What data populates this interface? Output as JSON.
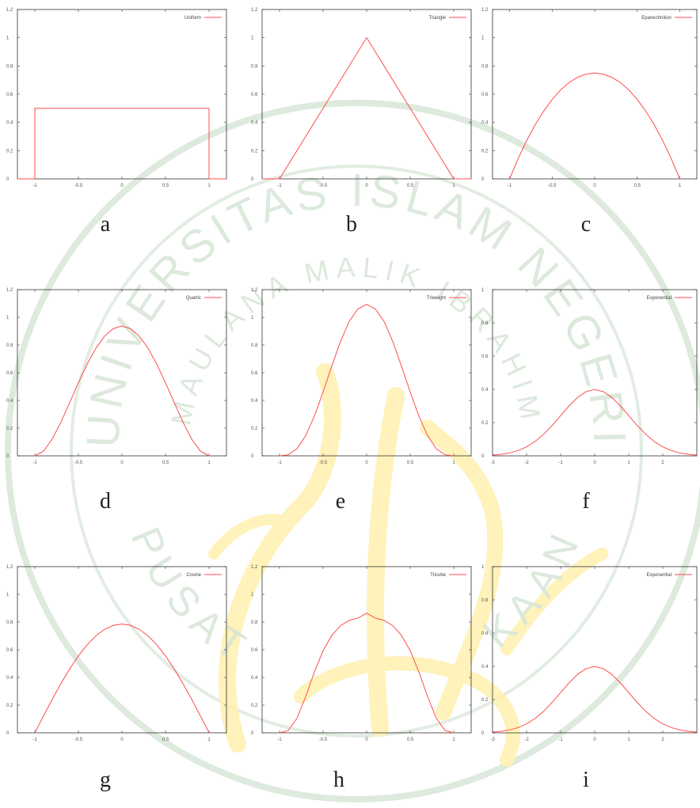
{
  "figure": {
    "watermark": {
      "arc_top": "UNIVERSITAS ISLAM NEGERI",
      "arc_inner": "MAULANA MALIK IBRAHIM",
      "arc_bottom": "PUSAT",
      "arc_bottom_right": "KAAN",
      "colors": {
        "ring": "#cfe1cf",
        "text": "#d6e6d6",
        "calligraphy": "#fff1b3"
      }
    }
  },
  "colors": {
    "curve": "#ff4d4d",
    "axis": "#333333",
    "ring": "#cfe1cf"
  },
  "chart_data": [
    {
      "type": "line",
      "caption": "a",
      "legend": "Uniform",
      "xlim": [
        -1.2,
        1.2
      ],
      "ylim": [
        0,
        1.2
      ],
      "x_ticks": [
        "-1",
        "-0.5",
        "0",
        "0.5",
        "1"
      ],
      "y_ticks": [
        "0",
        "0.2",
        "0.4",
        "0.6",
        "0.8",
        "1",
        "1.2"
      ],
      "series": [
        {
          "name": "Uniform",
          "x": [
            -1.2,
            -1,
            -1,
            1,
            1,
            1.2
          ],
          "y": [
            0,
            0,
            0.5,
            0.5,
            0,
            0
          ]
        }
      ]
    },
    {
      "type": "line",
      "caption": "b",
      "legend": "Triangle",
      "xlim": [
        -1.2,
        1.2
      ],
      "ylim": [
        0,
        1.2
      ],
      "x_ticks": [
        "-1",
        "-0.5",
        "0",
        "0.5",
        "1"
      ],
      "y_ticks": [
        "0",
        "0.2",
        "0.4",
        "0.6",
        "0.8",
        "1",
        "1.2"
      ],
      "series": [
        {
          "name": "Triangle",
          "x": [
            -1.2,
            -1,
            0,
            1,
            1.2
          ],
          "y": [
            0,
            0,
            1,
            0,
            0
          ]
        }
      ]
    },
    {
      "type": "line",
      "caption": "c",
      "legend": "Epanechnikov",
      "xlim": [
        -1.2,
        1.2
      ],
      "ylim": [
        0,
        1.2
      ],
      "x_ticks": [
        "-1",
        "-0.5",
        "0",
        "0.5",
        "1"
      ],
      "y_ticks": [
        "0",
        "0.2",
        "0.4",
        "0.6",
        "0.8",
        "1",
        "1.2"
      ],
      "series": [
        {
          "name": "Epanechnikov",
          "x": [
            -1,
            -0.9,
            -0.8,
            -0.7,
            -0.6,
            -0.5,
            -0.4,
            -0.3,
            -0.2,
            -0.1,
            0,
            0.1,
            0.2,
            0.3,
            0.4,
            0.5,
            0.6,
            0.7,
            0.8,
            0.9,
            1
          ],
          "y": [
            0,
            0.1425,
            0.27,
            0.3825,
            0.48,
            0.5625,
            0.63,
            0.6825,
            0.72,
            0.7425,
            0.75,
            0.7425,
            0.72,
            0.6825,
            0.63,
            0.5625,
            0.48,
            0.3825,
            0.27,
            0.1425,
            0
          ]
        }
      ]
    },
    {
      "type": "line",
      "caption": "d",
      "legend": "Quartic",
      "xlim": [
        -1.2,
        1.2
      ],
      "ylim": [
        0,
        1.2
      ],
      "x_ticks": [
        "-1",
        "-0.5",
        "0",
        "0.5",
        "1"
      ],
      "y_ticks": [
        "0",
        "0.2",
        "0.4",
        "0.6",
        "0.8",
        "1",
        "1.2"
      ],
      "series": [
        {
          "name": "Quartic",
          "x": [
            -1,
            -0.9,
            -0.8,
            -0.7,
            -0.6,
            -0.5,
            -0.4,
            -0.3,
            -0.2,
            -0.1,
            0,
            0.1,
            0.2,
            0.3,
            0.4,
            0.5,
            0.6,
            0.7,
            0.8,
            0.9,
            1
          ],
          "y": [
            0,
            0.0338,
            0.1215,
            0.2438,
            0.384,
            0.5273,
            0.6615,
            0.7763,
            0.864,
            0.9188,
            0.9375,
            0.9188,
            0.864,
            0.7763,
            0.6615,
            0.5273,
            0.384,
            0.2438,
            0.1215,
            0.0338,
            0
          ]
        }
      ]
    },
    {
      "type": "line",
      "caption": "e",
      "legend": "Triweight",
      "xlim": [
        -1.2,
        1.2
      ],
      "ylim": [
        0,
        1.2
      ],
      "x_ticks": [
        "-1",
        "-0.5",
        "0",
        "0.5",
        "1"
      ],
      "y_ticks": [
        "0",
        "0.2",
        "0.4",
        "0.6",
        "0.8",
        "1",
        "1.2"
      ],
      "series": [
        {
          "name": "Triweight",
          "x": [
            -1,
            -0.9,
            -0.8,
            -0.7,
            -0.6,
            -0.5,
            -0.4,
            -0.3,
            -0.2,
            -0.1,
            0,
            0.1,
            0.2,
            0.3,
            0.4,
            0.5,
            0.6,
            0.7,
            0.8,
            0.9,
            1
          ],
          "y": [
            0,
            0.0075,
            0.051,
            0.1456,
            0.2867,
            0.4614,
            0.6484,
            0.8262,
            0.9708,
            1.0607,
            1.0938,
            1.0607,
            0.9708,
            0.8262,
            0.6484,
            0.4614,
            0.2867,
            0.1456,
            0.051,
            0.0075,
            0
          ]
        }
      ]
    },
    {
      "type": "line",
      "caption": "f",
      "legend": "Exponential",
      "xlim": [
        -3,
        3
      ],
      "ylim": [
        0,
        1
      ],
      "x_ticks": [
        "-3",
        "-2",
        "-1",
        "0",
        "1",
        "2"
      ],
      "y_ticks": [
        "0",
        "0.2",
        "0.4",
        "0.6",
        "0.8",
        "1"
      ],
      "series": [
        {
          "name": "Exponential",
          "x": [
            -3,
            -2.75,
            -2.5,
            -2.25,
            -2,
            -1.75,
            -1.5,
            -1.25,
            -1,
            -0.75,
            -0.5,
            -0.25,
            0,
            0.25,
            0.5,
            0.75,
            1,
            1.25,
            1.5,
            1.75,
            2,
            2.25,
            2.5,
            2.75,
            3
          ],
          "y": [
            0.0044,
            0.0091,
            0.0175,
            0.0317,
            0.054,
            0.0863,
            0.1295,
            0.1826,
            0.242,
            0.3011,
            0.3521,
            0.3867,
            0.3989,
            0.3867,
            0.3521,
            0.3011,
            0.242,
            0.1826,
            0.1295,
            0.0863,
            0.054,
            0.0317,
            0.0175,
            0.0091,
            0.0044
          ]
        }
      ]
    },
    {
      "type": "line",
      "caption": "g",
      "legend": "Cosine",
      "xlim": [
        -1.2,
        1.2
      ],
      "ylim": [
        0,
        1.2
      ],
      "x_ticks": [
        "-1",
        "-0.5",
        "0",
        "0.5",
        "1"
      ],
      "y_ticks": [
        "0",
        "0.2",
        "0.4",
        "0.6",
        "0.8",
        "1",
        "1.2"
      ],
      "series": [
        {
          "name": "Cosine",
          "x": [
            -1,
            -0.9,
            -0.8,
            -0.7,
            -0.6,
            -0.5,
            -0.4,
            -0.3,
            -0.2,
            -0.1,
            0,
            0.1,
            0.2,
            0.3,
            0.4,
            0.5,
            0.6,
            0.7,
            0.8,
            0.9,
            1
          ],
          "y": [
            0,
            0.1229,
            0.2427,
            0.3566,
            0.4617,
            0.5554,
            0.6354,
            0.6998,
            0.747,
            0.7757,
            0.7854,
            0.7757,
            0.747,
            0.6998,
            0.6354,
            0.5554,
            0.4617,
            0.3566,
            0.2427,
            0.1229,
            0
          ]
        }
      ]
    },
    {
      "type": "line",
      "caption": "h",
      "legend": "Tricube",
      "xlim": [
        -1.2,
        1.2
      ],
      "ylim": [
        0,
        1.2
      ],
      "x_ticks": [
        "-1",
        "-0.5",
        "0",
        "0.5",
        "1"
      ],
      "y_ticks": [
        "0",
        "0.2",
        "0.4",
        "0.6",
        "0.8",
        "1",
        "1.2"
      ],
      "series": [
        {
          "name": "Tricube",
          "x": [
            -1,
            -0.9,
            -0.8,
            -0.7,
            -0.6,
            -0.5,
            -0.4,
            -0.3,
            -0.2,
            -0.1,
            0,
            0.1,
            0.2,
            0.3,
            0.4,
            0.5,
            0.6,
            0.7,
            0.8,
            0.9,
            1
          ],
          "y": [
            0,
            0.0166,
            0.1047,
            0.2615,
            0.4389,
            0.5929,
            0.7038,
            0.7737,
            0.8121,
            0.8283,
            0.8642,
            0.8283,
            0.8121,
            0.7737,
            0.7038,
            0.5929,
            0.4389,
            0.2615,
            0.1047,
            0.0166,
            0
          ]
        }
      ]
    },
    {
      "type": "line",
      "caption": "i",
      "legend": "Exponential",
      "xlim": [
        -3,
        3
      ],
      "ylim": [
        0,
        1
      ],
      "x_ticks": [
        "-3",
        "-2",
        "-1",
        "0",
        "1",
        "2"
      ],
      "y_ticks": [
        "0",
        "0.2",
        "0.4",
        "0.6",
        "0.8",
        "1"
      ],
      "series": [
        {
          "name": "Exponential",
          "x": [
            -3,
            -2.75,
            -2.5,
            -2.25,
            -2,
            -1.75,
            -1.5,
            -1.25,
            -1,
            -0.75,
            -0.5,
            -0.25,
            0,
            0.25,
            0.5,
            0.75,
            1,
            1.25,
            1.5,
            1.75,
            2,
            2.25,
            2.5,
            2.75,
            3
          ],
          "y": [
            0.0044,
            0.0091,
            0.0175,
            0.0317,
            0.054,
            0.0863,
            0.1295,
            0.1826,
            0.242,
            0.3011,
            0.3521,
            0.3867,
            0.3989,
            0.3867,
            0.3521,
            0.3011,
            0.242,
            0.1826,
            0.1295,
            0.0863,
            0.054,
            0.0317,
            0.0175,
            0.0091,
            0.0044
          ]
        }
      ]
    }
  ]
}
